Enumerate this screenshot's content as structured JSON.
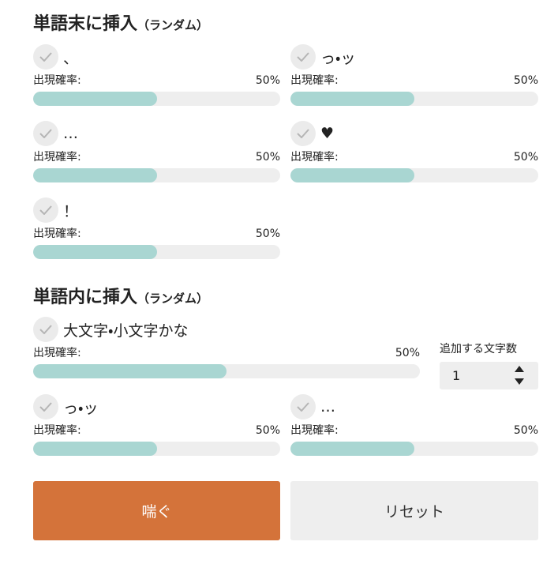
{
  "sections": [
    {
      "title": "単語末に挿入",
      "suffix": "（ランダム）",
      "items": [
        {
          "label": "、",
          "rate_label": "出現確率:",
          "value": 50,
          "value_label": "50%"
        },
        {
          "label": "っ・ッ",
          "rate_label": "出現確率:",
          "value": 50,
          "value_label": "50%"
        },
        {
          "label": "…",
          "rate_label": "出現確率:",
          "value": 50,
          "value_label": "50%"
        },
        {
          "label": "♥",
          "rate_label": "出現確率:",
          "value": 50,
          "value_label": "50%"
        },
        {
          "label": "！",
          "rate_label": "出現確率:",
          "value": 50,
          "value_label": "50%"
        }
      ]
    },
    {
      "title": "単語内に挿入",
      "suffix": "（ランダム）",
      "items": [
        {
          "label": "大文字・小文字かな",
          "rate_label": "出現確率:",
          "value": 50,
          "value_label": "50%",
          "count_label": "追加する文字数",
          "count": 1
        },
        {
          "label": "っ・ッ",
          "rate_label": "出現確率:",
          "value": 50,
          "value_label": "50%"
        },
        {
          "label": "…",
          "rate_label": "出現確率:",
          "value": 50,
          "value_label": "50%"
        }
      ]
    }
  ],
  "buttons": {
    "primary": "喘ぐ",
    "secondary": "リセット"
  }
}
